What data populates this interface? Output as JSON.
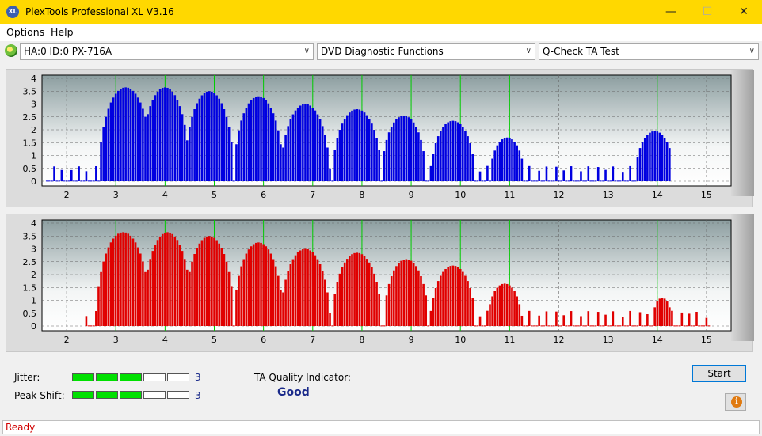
{
  "window": {
    "title": "PlexTools Professional XL V3.16",
    "icon_text": "XL",
    "minimize": "—",
    "maximize": "☐",
    "close": "✕"
  },
  "menu": {
    "options": "Options",
    "help": "Help"
  },
  "toolbar": {
    "drive": "HA:0 ID:0  PX-716A",
    "function": "DVD Diagnostic Functions",
    "test": "Q-Check TA Test"
  },
  "colors": {
    "accent_titlebar": "#ffd800",
    "upper_bars": "#0000e0",
    "lower_bars": "#e00000",
    "peak_lines": "#00cc00",
    "status_text": "#d00000"
  },
  "icons": {
    "app": "xl-logo-icon",
    "drive": "disc-drive-icon",
    "info": "info-icon",
    "dropdown": "chevron-down-icon"
  },
  "chart_data": [
    {
      "type": "bar",
      "name_hint": "upper",
      "color": "#0000e0",
      "x_ticks": [
        "2",
        "3",
        "4",
        "5",
        "6",
        "7",
        "8",
        "9",
        "10",
        "11",
        "12",
        "13",
        "14",
        "15"
      ],
      "y_ticks": [
        "0",
        "0.5",
        "1",
        "1.5",
        "2",
        "2.5",
        "3",
        "3.5",
        "4"
      ],
      "xlim": [
        1.5,
        15.5
      ],
      "ylim": [
        0,
        4
      ],
      "peak_markers": [
        3,
        4,
        5,
        6,
        7,
        8,
        9,
        10,
        11,
        14
      ],
      "peaks": [
        {
          "center": 3.2,
          "height": 3.65,
          "width": 0.55
        },
        {
          "center": 4.0,
          "height": 3.65,
          "width": 0.5
        },
        {
          "center": 4.9,
          "height": 3.5,
          "width": 0.5
        },
        {
          "center": 5.9,
          "height": 3.3,
          "width": 0.5
        },
        {
          "center": 6.85,
          "height": 3.0,
          "width": 0.5
        },
        {
          "center": 7.9,
          "height": 2.8,
          "width": 0.5
        },
        {
          "center": 8.85,
          "height": 2.55,
          "width": 0.45
        },
        {
          "center": 9.85,
          "height": 2.35,
          "width": 0.45
        },
        {
          "center": 10.95,
          "height": 1.7,
          "width": 0.35
        },
        {
          "center": 13.95,
          "height": 1.95,
          "width": 0.4
        }
      ],
      "range": [
        1.6,
        14.3
      ]
    },
    {
      "type": "bar",
      "name_hint": "lower",
      "color": "#e00000",
      "x_ticks": [
        "2",
        "3",
        "4",
        "5",
        "6",
        "7",
        "8",
        "9",
        "10",
        "11",
        "12",
        "13",
        "14",
        "15"
      ],
      "y_ticks": [
        "0",
        "0.5",
        "1",
        "1.5",
        "2",
        "2.5",
        "3",
        "3.5",
        "4"
      ],
      "xlim": [
        1.5,
        15.5
      ],
      "ylim": [
        0,
        4
      ],
      "peak_markers": [
        3,
        4,
        5,
        6,
        7,
        8,
        9,
        10,
        11,
        14
      ],
      "peaks": [
        {
          "center": 3.15,
          "height": 3.65,
          "width": 0.55
        },
        {
          "center": 4.05,
          "height": 3.65,
          "width": 0.5
        },
        {
          "center": 4.9,
          "height": 3.5,
          "width": 0.5
        },
        {
          "center": 5.9,
          "height": 3.25,
          "width": 0.5
        },
        {
          "center": 6.85,
          "height": 3.0,
          "width": 0.5
        },
        {
          "center": 7.9,
          "height": 2.85,
          "width": 0.5
        },
        {
          "center": 8.9,
          "height": 2.6,
          "width": 0.45
        },
        {
          "center": 9.85,
          "height": 2.35,
          "width": 0.45
        },
        {
          "center": 10.9,
          "height": 1.65,
          "width": 0.35
        },
        {
          "center": 14.1,
          "height": 1.1,
          "width": 0.2
        }
      ],
      "range": [
        2.4,
        15.1
      ]
    }
  ],
  "jitter": {
    "label": "Jitter:",
    "value": "3",
    "level": 3,
    "max": 5
  },
  "peak_shift": {
    "label": "Peak Shift:",
    "value": "3",
    "level": 3,
    "max": 5
  },
  "ta_quality": {
    "label": "TA Quality Indicator:",
    "value": "Good"
  },
  "buttons": {
    "start": "Start",
    "info_glyph": "i"
  },
  "status": {
    "text": "Ready"
  }
}
